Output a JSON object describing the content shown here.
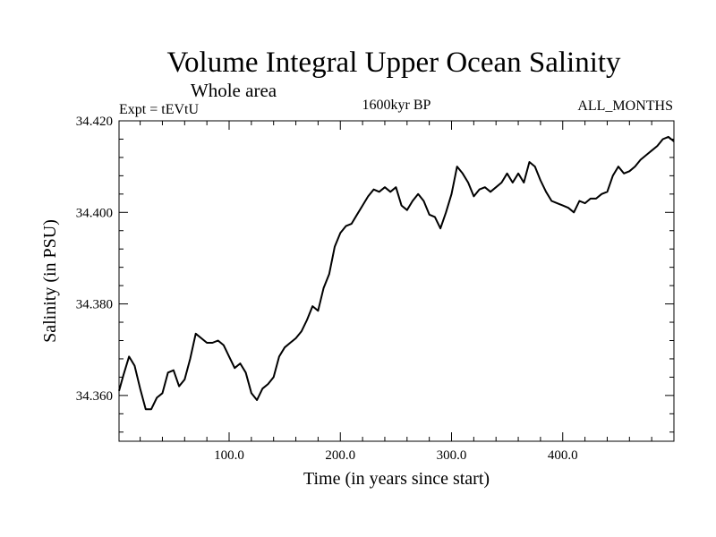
{
  "chart_data": {
    "type": "line",
    "title": "Volume Integral Upper Ocean Salinity",
    "subtitle": "Whole area",
    "experiment_label": "Expt = tEVtU",
    "period_label": "1600kyr BP",
    "months_label": "ALL_MONTHS",
    "xlabel": "Time (in years since start)",
    "ylabel": "Salinity (in PSU)",
    "xlim": [
      1,
      500
    ],
    "ylim": [
      34.35,
      34.42
    ],
    "xticks": [
      100,
      200,
      300,
      400
    ],
    "xtick_labels": [
      "100.0",
      "200.0",
      "300.0",
      "400.0"
    ],
    "yticks": [
      34.36,
      34.38,
      34.4,
      34.42
    ],
    "ytick_labels": [
      "34.360",
      "34.380",
      "34.400",
      "34.420"
    ],
    "grid": false,
    "series": [
      {
        "name": "Salinity",
        "color": "#000000",
        "x": [
          1,
          5,
          10,
          15,
          20,
          25,
          30,
          35,
          40,
          45,
          50,
          55,
          60,
          65,
          70,
          75,
          80,
          85,
          90,
          95,
          100,
          105,
          110,
          115,
          120,
          125,
          130,
          135,
          140,
          145,
          150,
          155,
          160,
          165,
          170,
          175,
          180,
          185,
          190,
          195,
          200,
          205,
          210,
          215,
          220,
          225,
          230,
          235,
          240,
          245,
          250,
          255,
          260,
          265,
          270,
          275,
          280,
          285,
          290,
          295,
          300,
          305,
          310,
          315,
          320,
          325,
          330,
          335,
          340,
          345,
          350,
          355,
          360,
          365,
          370,
          375,
          380,
          385,
          390,
          395,
          400,
          405,
          410,
          415,
          420,
          425,
          430,
          435,
          440,
          445,
          450,
          455,
          460,
          465,
          470,
          475,
          480,
          485,
          490,
          495,
          500
        ],
        "values": [
          34.361,
          34.3645,
          34.3685,
          34.3665,
          34.3615,
          34.357,
          34.357,
          34.3595,
          34.3605,
          34.365,
          34.3655,
          34.362,
          34.3635,
          34.368,
          34.3735,
          34.3725,
          34.3715,
          34.3715,
          34.372,
          34.371,
          34.3685,
          34.366,
          34.367,
          34.365,
          34.3605,
          34.359,
          34.3615,
          34.3625,
          34.364,
          34.3685,
          34.3705,
          34.3715,
          34.3725,
          34.374,
          34.3765,
          34.3795,
          34.3785,
          34.3835,
          34.3865,
          34.3925,
          34.3955,
          34.397,
          34.3975,
          34.3995,
          34.4015,
          34.4035,
          34.405,
          34.4045,
          34.4055,
          34.4045,
          34.4055,
          34.4015,
          34.4005,
          34.4025,
          34.404,
          34.4025,
          34.3995,
          34.399,
          34.3965,
          34.4,
          34.404,
          34.41,
          34.4085,
          34.4065,
          34.4035,
          34.405,
          34.4055,
          34.4045,
          34.4055,
          34.4065,
          34.4085,
          34.4065,
          34.4085,
          34.4065,
          34.411,
          34.41,
          34.407,
          34.4045,
          34.4025,
          34.402,
          34.4015,
          34.401,
          34.4,
          34.4025,
          34.402,
          34.403,
          34.403,
          34.404,
          34.4045,
          34.408,
          34.41,
          34.4085,
          34.409,
          34.41,
          34.4115,
          34.4125,
          34.4135,
          34.4145,
          34.416,
          34.4165,
          34.4155
        ]
      }
    ]
  }
}
